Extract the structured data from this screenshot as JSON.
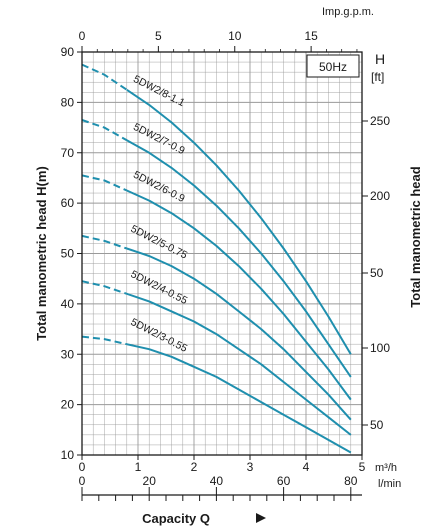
{
  "chart_data": {
    "type": "line",
    "frequency_label": "50Hz",
    "x_primary": {
      "label": "Capacity Q",
      "unit": "m³/h",
      "range": [
        0,
        5
      ],
      "ticks": [
        "0",
        "1",
        "2",
        "3",
        "4",
        "5"
      ]
    },
    "x_top": {
      "unit": "Imp.g.p.m.",
      "ticks": [
        "0",
        "5",
        "10",
        "15"
      ]
    },
    "x_bottom2": {
      "unit": "l/min",
      "ticks": [
        "0",
        "20",
        "40",
        "60",
        "80"
      ]
    },
    "y_left": {
      "label": "Total manometric head H(m)",
      "range": [
        10,
        90
      ],
      "ticks": [
        "10",
        "20",
        "30",
        "40",
        "50",
        "60",
        "70",
        "80",
        "90"
      ]
    },
    "y_right": {
      "label": "Total manometric head",
      "header_letter": "H",
      "header_unit": "[ft]",
      "ticks_upper": [
        "250",
        "200",
        "50"
      ],
      "ticks_lower": [
        "100",
        "50"
      ]
    },
    "series": [
      {
        "name": "5DW2/8-1.1",
        "dashed": {
          "x": [
            0,
            0.4,
            0.8
          ],
          "y": [
            87.5,
            85.5,
            82.5
          ]
        },
        "solid": {
          "x": [
            0.8,
            1.2,
            1.6,
            2.0,
            2.4,
            2.8,
            3.2,
            3.6,
            4.0,
            4.4,
            4.8
          ],
          "y": [
            82.5,
            79.5,
            76.0,
            72.0,
            67.5,
            62.5,
            57.0,
            51.0,
            44.5,
            37.5,
            30.0
          ]
        }
      },
      {
        "name": "5DW2/7-0.9",
        "dashed": {
          "x": [
            0,
            0.4,
            0.8
          ],
          "y": [
            76.5,
            75.0,
            72.5
          ]
        },
        "solid": {
          "x": [
            0.8,
            1.2,
            1.6,
            2.0,
            2.4,
            2.8,
            3.2,
            3.6,
            4.0,
            4.4,
            4.8
          ],
          "y": [
            72.5,
            70.0,
            67.0,
            63.5,
            59.5,
            55.0,
            50.0,
            44.5,
            38.5,
            32.0,
            25.5
          ]
        }
      },
      {
        "name": "5DW2/6-0.9",
        "dashed": {
          "x": [
            0,
            0.4,
            0.8
          ],
          "y": [
            65.5,
            64.5,
            62.5
          ]
        },
        "solid": {
          "x": [
            0.8,
            1.2,
            1.6,
            2.0,
            2.4,
            2.8,
            3.2,
            3.6,
            4.0,
            4.4,
            4.8
          ],
          "y": [
            62.5,
            60.5,
            58.0,
            55.0,
            51.5,
            47.5,
            43.0,
            38.0,
            32.5,
            27.0,
            21.0
          ]
        }
      },
      {
        "name": "5DW2/5-0.75",
        "dashed": {
          "x": [
            0,
            0.4,
            0.8
          ],
          "y": [
            53.5,
            52.5,
            51.0
          ]
        },
        "solid": {
          "x": [
            0.8,
            1.2,
            1.6,
            2.0,
            2.4,
            2.8,
            3.2,
            3.6,
            4.0,
            4.4,
            4.8
          ],
          "y": [
            51.0,
            49.5,
            47.5,
            45.0,
            42.0,
            38.5,
            35.0,
            31.0,
            26.5,
            22.0,
            17.0
          ]
        }
      },
      {
        "name": "5DW2/4-0.55",
        "dashed": {
          "x": [
            0,
            0.4,
            0.8
          ],
          "y": [
            44.5,
            43.5,
            42.0
          ]
        },
        "solid": {
          "x": [
            0.8,
            1.2,
            1.6,
            2.0,
            2.4,
            2.8,
            3.2,
            3.6,
            4.0,
            4.4,
            4.8
          ],
          "y": [
            42.0,
            40.5,
            38.5,
            36.5,
            34.0,
            31.0,
            28.0,
            24.5,
            21.0,
            17.5,
            14.0
          ]
        }
      },
      {
        "name": "5DW2/3-0.55",
        "dashed": {
          "x": [
            0,
            0.4,
            0.8
          ],
          "y": [
            33.5,
            33.0,
            32.0
          ]
        },
        "solid": {
          "x": [
            0.8,
            1.2,
            1.6,
            2.0,
            2.4,
            2.8,
            3.2,
            3.6,
            4.0,
            4.4,
            4.8
          ],
          "y": [
            32.0,
            31.0,
            29.5,
            27.5,
            25.5,
            23.0,
            20.5,
            18.0,
            15.5,
            13.0,
            10.5
          ]
        }
      }
    ],
    "line_color": "#1f8fae",
    "grid": true
  }
}
